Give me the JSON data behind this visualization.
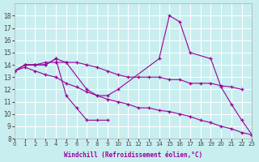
{
  "background_color": "#c8eef0",
  "grid_color": "#ffffff",
  "line_color": "#990099",
  "xlabel": "Windchill (Refroidissement éolien,°C)",
  "xlim": [
    0,
    23
  ],
  "ylim": [
    8,
    19
  ],
  "yticks": [
    8,
    9,
    10,
    11,
    12,
    13,
    14,
    15,
    16,
    17,
    18
  ],
  "xticks": [
    0,
    1,
    2,
    3,
    4,
    5,
    6,
    7,
    8,
    9,
    10,
    11,
    12,
    13,
    14,
    15,
    16,
    17,
    18,
    19,
    20,
    21,
    22,
    23
  ],
  "line1_x": [
    0,
    1,
    2,
    3,
    4,
    5,
    7,
    8,
    9,
    10,
    14,
    15,
    16,
    17,
    19,
    20,
    21,
    22,
    23
  ],
  "line1_y": [
    13.5,
    14.0,
    14.0,
    14.0,
    14.5,
    14.2,
    12.0,
    11.5,
    11.5,
    12.0,
    14.5,
    18.0,
    17.5,
    15.0,
    14.5,
    12.2,
    10.8,
    9.5,
    8.3
  ],
  "line2_x": [
    0,
    1,
    2,
    3,
    4,
    5,
    6,
    7,
    8,
    9,
    10,
    11,
    12,
    13,
    14,
    15,
    16,
    17,
    18,
    19,
    20,
    21,
    22
  ],
  "line2_y": [
    13.5,
    14.0,
    14.0,
    14.2,
    14.2,
    14.2,
    14.2,
    14.0,
    13.8,
    13.5,
    13.2,
    13.0,
    13.0,
    13.0,
    13.0,
    12.8,
    12.8,
    12.5,
    12.5,
    12.5,
    12.3,
    12.2,
    12.0
  ],
  "line3_x": [
    0,
    1,
    2,
    3,
    4,
    5,
    6,
    7,
    8,
    9,
    10,
    11,
    12,
    13,
    14,
    15,
    16,
    17,
    18,
    19,
    20,
    21,
    22,
    23
  ],
  "line3_y": [
    13.5,
    13.8,
    13.5,
    13.2,
    13.0,
    12.5,
    12.2,
    11.8,
    11.5,
    11.2,
    11.0,
    10.8,
    10.5,
    10.5,
    10.3,
    10.2,
    10.0,
    9.8,
    9.5,
    9.3,
    9.0,
    8.8,
    8.5,
    8.3
  ],
  "line4_x": [
    0,
    1,
    2,
    3,
    4,
    5,
    6,
    7,
    8,
    9
  ],
  "line4_y": [
    13.5,
    14.0,
    14.0,
    14.0,
    14.5,
    11.5,
    10.5,
    9.5,
    9.5,
    9.5
  ]
}
